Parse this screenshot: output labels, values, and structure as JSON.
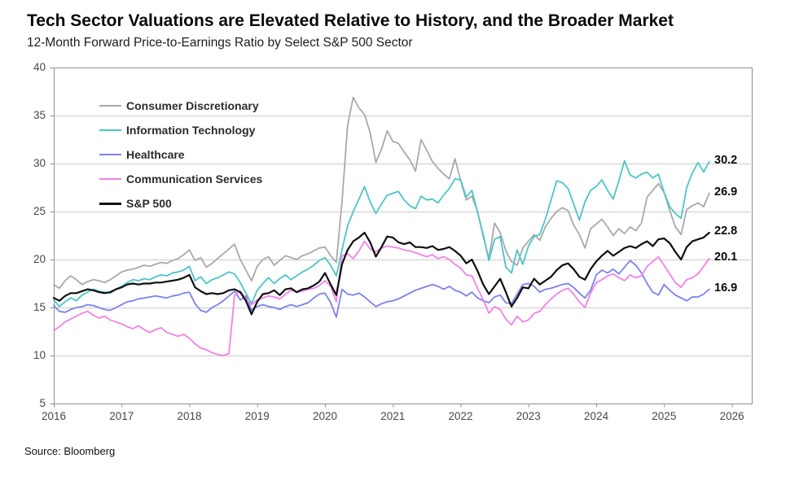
{
  "header": {
    "title": "Tech Sector Valuations are Elevated Relative to History, and the Broader Market",
    "subtitle": "12-Month Forward Price-to-Earnings Ratio by Select S&P 500 Sector"
  },
  "footer": {
    "source": "Source: Bloomberg"
  },
  "colors": {
    "consumer_discretionary": "#a9a9ab",
    "information_technology": "#4ec5c5",
    "healthcare": "#7b80ee",
    "communication_services": "#f282e5",
    "sp500": "#0f0f0f",
    "grid": "#cbcbcb",
    "axis": "#8f9092",
    "tick_label": "#47484a"
  },
  "chart_data": {
    "type": "line",
    "title": "Tech Sector Valuations are Elevated Relative to History, and the Broader Market",
    "subtitle": "12-Month Forward Price-to-Earnings Ratio by Select S&P 500 Sector",
    "source": "Source: Bloomberg",
    "x_unit": "monthly",
    "x_start_year": 2016,
    "x_end_label": "Sep 2025",
    "grid": "horizontal-only",
    "legend_position": "top-left",
    "x_axis": {
      "ticks": [
        "2016",
        "2017",
        "2018",
        "2019",
        "2020",
        "2021",
        "2022",
        "2023",
        "2024",
        "2025",
        "2026"
      ],
      "min": 2016,
      "max": 2026.29
    },
    "y_axis": {
      "min": 5,
      "max": 40,
      "tick_interval": 5,
      "ticks": [
        40,
        35,
        30,
        25,
        20,
        15,
        10,
        5
      ],
      "gridlines": [
        35,
        30,
        25,
        20,
        15,
        10
      ]
    },
    "series": [
      {
        "name": "Consumer Discretionary",
        "color_key": "consumer_discretionary",
        "end_label": "26.9",
        "values": [
          17.4,
          17.0,
          17.8,
          18.3,
          17.9,
          17.4,
          17.7,
          17.9,
          17.8,
          17.6,
          17.9,
          18.3,
          18.7,
          18.9,
          19.0,
          19.2,
          19.4,
          19.3,
          19.5,
          19.7,
          19.6,
          19.9,
          20.1,
          20.5,
          21.0,
          19.9,
          20.2,
          19.2,
          19.6,
          20.1,
          20.6,
          21.1,
          21.6,
          20.0,
          18.9,
          17.8,
          19.3,
          20.0,
          20.3,
          19.4,
          19.9,
          20.4,
          20.2,
          20.0,
          20.4,
          20.6,
          20.9,
          21.2,
          21.3,
          20.4,
          19.7,
          26.0,
          34.0,
          36.9,
          35.8,
          35.1,
          33.2,
          30.1,
          31.5,
          33.4,
          32.3,
          32.1,
          31.2,
          30.4,
          29.2,
          32.5,
          31.4,
          30.2,
          29.5,
          28.9,
          28.4,
          30.5,
          28.2,
          26.2,
          26.6,
          25.0,
          22.4,
          20.1,
          23.8,
          22.8,
          20.9,
          19.8,
          19.4,
          21.2,
          21.9,
          22.6,
          22.0,
          23.4,
          24.3,
          25.0,
          25.4,
          25.1,
          23.6,
          22.6,
          21.2,
          23.2,
          23.7,
          24.2,
          23.4,
          22.5,
          23.2,
          22.7,
          23.4,
          23.0,
          23.8,
          26.5,
          27.2,
          27.9,
          27.0,
          25.1,
          23.4,
          22.6,
          25.2,
          25.6,
          25.9,
          25.5,
          26.9
        ]
      },
      {
        "name": "Information Technology",
        "color_key": "information_technology",
        "end_label": "30.2",
        "values": [
          15.8,
          15.1,
          15.6,
          16.0,
          15.7,
          16.3,
          16.6,
          16.9,
          16.7,
          16.6,
          16.5,
          16.9,
          17.2,
          17.6,
          17.9,
          17.8,
          18.0,
          17.9,
          18.2,
          18.4,
          18.3,
          18.6,
          18.7,
          18.9,
          19.3,
          17.8,
          18.2,
          17.5,
          17.9,
          18.1,
          18.4,
          18.7,
          18.5,
          17.6,
          16.5,
          15.4,
          16.8,
          17.5,
          18.1,
          17.5,
          18.0,
          18.4,
          17.9,
          18.3,
          18.7,
          19.0,
          19.4,
          19.9,
          20.2,
          19.4,
          18.3,
          21.0,
          23.5,
          25.0,
          26.3,
          27.6,
          26.0,
          24.8,
          25.8,
          26.7,
          26.9,
          27.1,
          26.2,
          25.6,
          25.3,
          26.6,
          26.2,
          26.3,
          25.9,
          26.7,
          27.4,
          28.4,
          28.3,
          26.5,
          27.2,
          24.9,
          22.6,
          19.9,
          22.1,
          22.4,
          19.2,
          18.6,
          21.0,
          19.5,
          21.4,
          22.4,
          22.6,
          24.2,
          26.2,
          28.2,
          28.0,
          27.4,
          25.8,
          24.1,
          26.0,
          27.2,
          27.6,
          28.3,
          27.2,
          26.3,
          28.2,
          30.3,
          28.8,
          28.5,
          28.9,
          29.1,
          28.5,
          28.9,
          27.0,
          25.5,
          24.8,
          24.3,
          27.5,
          29.0,
          30.1,
          29.1,
          30.2
        ]
      },
      {
        "name": "Healthcare",
        "color_key": "healthcare",
        "end_label": "16.9",
        "values": [
          15.2,
          14.6,
          14.5,
          14.8,
          15.0,
          15.1,
          15.3,
          15.2,
          15.0,
          14.8,
          14.7,
          15.0,
          15.3,
          15.6,
          15.7,
          15.9,
          16.0,
          16.1,
          16.2,
          16.1,
          16.0,
          16.2,
          16.3,
          16.5,
          16.6,
          15.4,
          14.7,
          14.5,
          15.0,
          15.3,
          15.7,
          16.2,
          16.7,
          15.8,
          16.2,
          14.7,
          15.1,
          15.3,
          15.1,
          15.0,
          14.8,
          15.1,
          15.3,
          15.1,
          15.3,
          15.5,
          16.0,
          16.4,
          16.5,
          15.5,
          14.0,
          16.9,
          16.4,
          16.3,
          16.5,
          16.1,
          15.6,
          15.1,
          15.4,
          15.6,
          15.7,
          15.9,
          16.2,
          16.5,
          16.8,
          17.0,
          17.2,
          17.4,
          17.2,
          16.9,
          17.2,
          16.8,
          16.6,
          16.2,
          16.6,
          16.0,
          15.7,
          15.5,
          16.1,
          16.3,
          15.5,
          15.4,
          16.4,
          17.4,
          17.5,
          17.2,
          16.6,
          16.9,
          17.0,
          17.2,
          17.4,
          17.5,
          17.1,
          16.5,
          16.0,
          16.8,
          18.4,
          18.9,
          18.6,
          19.0,
          18.5,
          19.2,
          19.9,
          19.4,
          18.6,
          17.5,
          16.6,
          16.3,
          17.4,
          16.8,
          16.3,
          16.0,
          15.7,
          16.1,
          16.1,
          16.4,
          16.9
        ]
      },
      {
        "name": "Communication Services",
        "color_key": "communication_services",
        "end_label": "20.1",
        "values": [
          12.6,
          13.0,
          13.5,
          13.8,
          14.1,
          14.4,
          14.6,
          14.2,
          13.9,
          14.1,
          13.7,
          13.5,
          13.3,
          13.0,
          12.8,
          13.1,
          12.7,
          12.4,
          12.7,
          12.9,
          12.4,
          12.2,
          12.0,
          12.2,
          11.8,
          11.2,
          10.8,
          10.6,
          10.3,
          10.1,
          10.0,
          10.2,
          16.3,
          16.7,
          15.9,
          15.3,
          15.8,
          16.0,
          16.2,
          16.1,
          15.9,
          16.4,
          16.8,
          16.6,
          16.7,
          16.9,
          17.0,
          17.3,
          17.8,
          17.2,
          15.6,
          20.4,
          20.6,
          20.1,
          20.9,
          21.9,
          21.1,
          20.8,
          21.2,
          21.4,
          21.3,
          21.2,
          21.0,
          20.9,
          20.7,
          20.5,
          20.3,
          20.5,
          20.1,
          20.3,
          20.0,
          19.5,
          19.1,
          18.4,
          18.3,
          17.0,
          15.8,
          14.4,
          15.1,
          14.8,
          13.8,
          13.2,
          14.1,
          13.5,
          13.7,
          14.4,
          14.6,
          15.3,
          15.9,
          16.4,
          16.8,
          17.0,
          16.4,
          15.6,
          15.0,
          16.5,
          17.6,
          17.9,
          18.3,
          18.5,
          18.1,
          17.8,
          18.4,
          18.1,
          18.3,
          19.3,
          19.8,
          20.3,
          19.4,
          18.5,
          17.6,
          17.1,
          17.9,
          18.1,
          18.5,
          19.3,
          20.1
        ]
      },
      {
        "name": "S&P 500",
        "color_key": "sp500",
        "end_label": "22.8",
        "values": [
          16.0,
          15.7,
          16.2,
          16.5,
          16.5,
          16.7,
          16.9,
          16.8,
          16.6,
          16.5,
          16.6,
          16.9,
          17.1,
          17.4,
          17.5,
          17.4,
          17.5,
          17.5,
          17.6,
          17.6,
          17.7,
          17.8,
          17.9,
          18.1,
          18.4,
          17.1,
          16.7,
          16.4,
          16.5,
          16.4,
          16.5,
          16.8,
          16.9,
          16.6,
          15.7,
          14.3,
          15.6,
          16.4,
          16.5,
          16.8,
          16.3,
          16.9,
          17.0,
          16.6,
          16.9,
          17.0,
          17.3,
          17.7,
          18.6,
          17.4,
          16.3,
          19.5,
          21.0,
          21.9,
          22.3,
          22.8,
          21.8,
          20.3,
          21.3,
          22.4,
          22.3,
          21.8,
          21.6,
          21.8,
          21.3,
          21.3,
          21.2,
          21.4,
          21.0,
          21.1,
          21.3,
          20.9,
          20.4,
          19.6,
          20.0,
          18.8,
          17.4,
          16.4,
          17.2,
          18.0,
          16.6,
          15.1,
          16.0,
          17.1,
          17.0,
          18.0,
          17.4,
          17.8,
          18.2,
          18.9,
          19.4,
          19.6,
          19.0,
          18.2,
          17.9,
          19.0,
          19.8,
          20.4,
          20.9,
          20.4,
          20.8,
          21.2,
          21.4,
          21.2,
          21.6,
          21.9,
          21.4,
          22.1,
          22.2,
          21.7,
          20.8,
          20.0,
          21.3,
          21.9,
          22.1,
          22.3,
          22.8
        ]
      }
    ]
  }
}
